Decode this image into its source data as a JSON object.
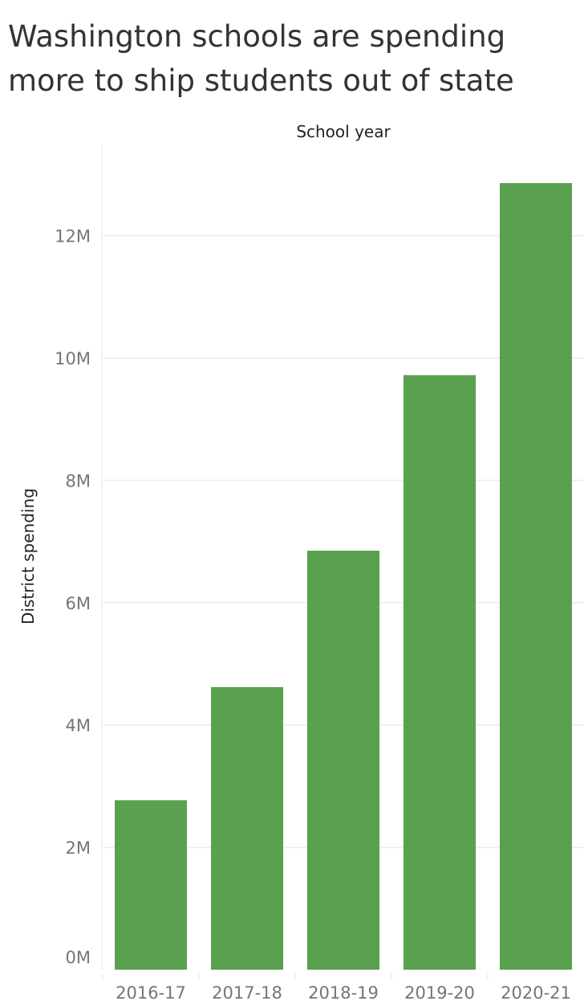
{
  "chart_data": {
    "type": "bar",
    "title": "Washington schools are spending more to ship students out of state",
    "xlabel": "School year",
    "ylabel": "District spending",
    "categories": [
      "2016-17",
      "2017-18",
      "2018-19",
      "2019-20",
      "2020-21"
    ],
    "values": [
      2.77,
      4.62,
      6.85,
      9.72,
      12.86
    ],
    "value_unit": "M",
    "ylim": [
      0,
      13.5
    ],
    "yticks": [
      0,
      2,
      4,
      6,
      8,
      10,
      12
    ],
    "ytick_labels": [
      "0M",
      "2M",
      "4M",
      "6M",
      "8M",
      "10M",
      "12M"
    ],
    "grid": true,
    "bar_color": "#59a14f"
  }
}
